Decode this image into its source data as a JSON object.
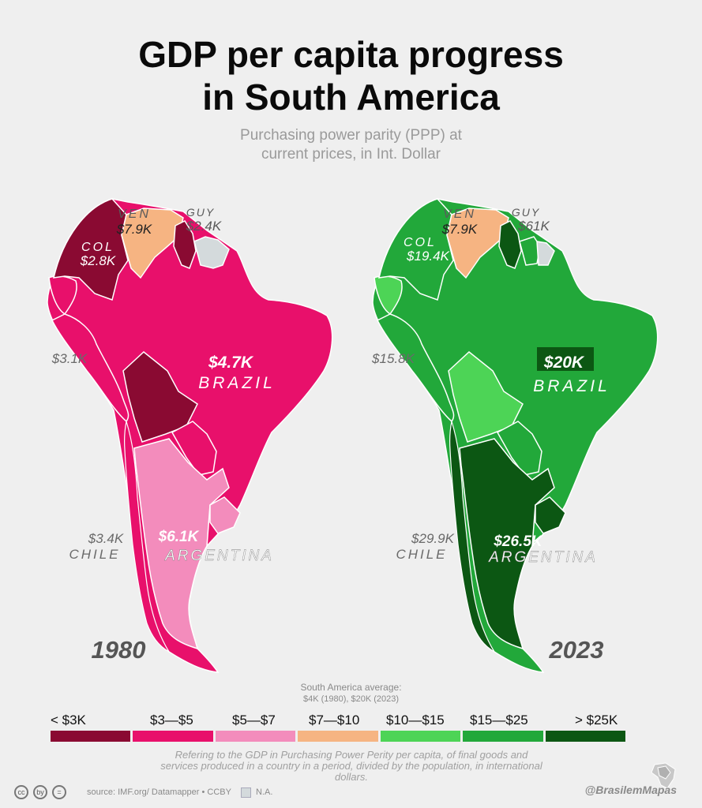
{
  "title_line1": "GDP per capita progress",
  "title_line2": "in South America",
  "subtitle_line1": "Purchasing power parity (PPP) at",
  "subtitle_line2": "current prices, in Int. Dollar",
  "colors": {
    "lt3": "#8a0a32",
    "3to5": "#e8106b",
    "5to7": "#f38cbc",
    "7to10": "#f6b482",
    "10to15": "#4dd456",
    "15to25": "#22a83a",
    "gt25": "#0c5713",
    "na": "#d4dadc"
  },
  "map_1980": {
    "year": "1980",
    "ven_name": "VEN",
    "ven_value": "$7.9K",
    "guy_name": "GUY",
    "guy_value": "$2.4K",
    "col_name": "COL",
    "col_value": "$2.8K",
    "peru_value": "$3.1K",
    "brazil_value": "$4.7K",
    "brazil_name": "BRAZIL",
    "chile_value": "$3.4K",
    "chile_name": "CHILE",
    "argentina_value": "$6.1K",
    "argentina_name": "ARGENTINA"
  },
  "map_2023": {
    "year": "2023",
    "ven_name": "VEN",
    "ven_value": "$7.9K",
    "guy_name": "GUY",
    "guy_value": "$61K",
    "col_name": "COL",
    "col_value": "$19.4K",
    "peru_value": "$15.8K",
    "brazil_value": "$20K",
    "brazil_name": "BRAZIL",
    "chile_value": "$29.9K",
    "chile_name": "CHILE",
    "argentina_value": "$26.5K",
    "argentina_name": "ARGENTINA"
  },
  "average_line1": "South America average:",
  "average_line2": "$4K (1980), $20K (2023)",
  "legend": [
    "< $3K",
    "$3—$5",
    "$5—$7",
    "$7—$10",
    "$10—$15",
    "$15—$25",
    "> $25K"
  ],
  "note": "Refering to the GDP in Purchasing Power Perity per capita, of final goods and services produced in a country in a period, divided by the population, in international dollars.",
  "source": "source: IMF.org/ Datamapper • CCBY",
  "na_label": "N.A.",
  "handle": "@BrasilemMapas",
  "cc_icons": [
    "cc",
    "by",
    "="
  ]
}
